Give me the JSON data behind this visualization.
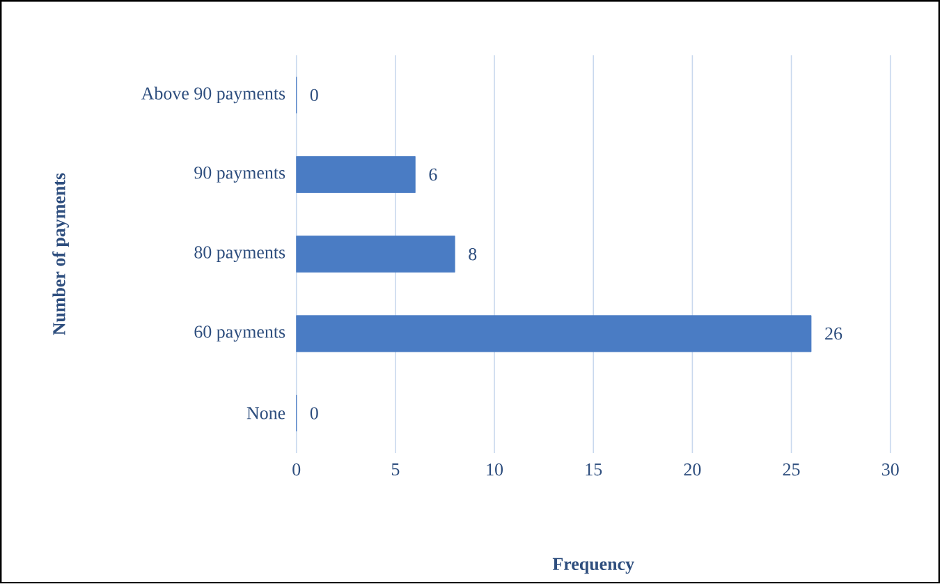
{
  "chart_data": {
    "type": "bar",
    "orientation": "horizontal",
    "categories": [
      "Above 90 payments",
      "90 payments",
      "80 payments",
      "60 payments",
      "None"
    ],
    "values": [
      0,
      6,
      8,
      26,
      0
    ],
    "color": "#4a7cc4",
    "xlim": [
      0,
      30
    ],
    "xticks": [
      0,
      5,
      10,
      15,
      20,
      25,
      30
    ],
    "xlabel": "Frequency",
    "ylabel": "Number of payments",
    "grid": "x",
    "data_labels": true
  }
}
